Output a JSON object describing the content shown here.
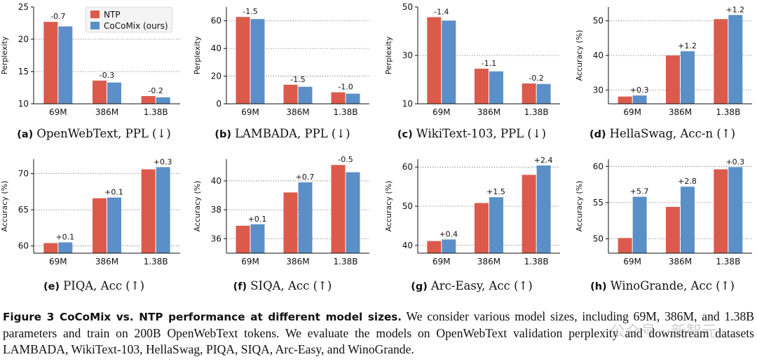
{
  "legend": {
    "ntp": "NTP",
    "cocomix": "CoCoMix (ours)"
  },
  "colors": {
    "ntp": "#dc5a4b",
    "cocomix": "#5b8fc7"
  },
  "caption": {
    "lead": "Figure 3  CoCoMix vs. NTP performance at different model sizes.",
    "body": " We consider various model sizes, including 69M, 386M, and 1.38B parameters and train on 200B OpenWebText tokens. We evaluate the models on OpenWebText validation perplexity and downstream datasets LAMBADA, WikiText-103, HellaSwag, PIQA, SIQA, Arc-Easy, and WinoGrande."
  },
  "watermark": "公众号 · 新智元",
  "chart_data": [
    {
      "type": "bar",
      "panel_letter": "(a)",
      "subtitle": "OpenWebText, PPL (↓)",
      "ylabel": "Perplexity",
      "categories": [
        "69M",
        "386M",
        "1.38B"
      ],
      "ylim": [
        10,
        25
      ],
      "yticks": [
        10,
        15,
        20,
        25
      ],
      "series": [
        {
          "name": "NTP",
          "values": [
            22.7,
            13.6,
            11.2
          ]
        },
        {
          "name": "CoCoMix (ours)",
          "values": [
            22.0,
            13.3,
            11.0
          ]
        }
      ],
      "annotations": [
        "-0.7",
        "-0.3",
        "-0.2"
      ],
      "grid": true,
      "legend": "top-right"
    },
    {
      "type": "bar",
      "panel_letter": "(b)",
      "subtitle": "LAMBADA, PPL (↓)",
      "ylabel": "Perplexity",
      "categories": [
        "69M",
        "386M",
        "1.38B"
      ],
      "ylim": [
        0,
        70
      ],
      "yticks": [
        0,
        20,
        40,
        60
      ],
      "series": [
        {
          "name": "NTP",
          "values": [
            62.8,
            13.8,
            8.3
          ]
        },
        {
          "name": "CoCoMix (ours)",
          "values": [
            61.3,
            12.3,
            7.3
          ]
        }
      ],
      "annotations": [
        "-1.5",
        "-1.5",
        "-1.0"
      ],
      "grid": true
    },
    {
      "type": "bar",
      "panel_letter": "(c)",
      "subtitle": "WikiText-103, PPL (↓)",
      "ylabel": "Perplexity",
      "categories": [
        "69M",
        "386M",
        "1.38B"
      ],
      "ylim": [
        10,
        50
      ],
      "yticks": [
        10,
        30,
        50
      ],
      "series": [
        {
          "name": "NTP",
          "values": [
            45.8,
            24.5,
            18.4
          ]
        },
        {
          "name": "CoCoMix (ours)",
          "values": [
            44.4,
            23.4,
            18.2
          ]
        }
      ],
      "annotations": [
        "-1.4",
        "-1.1",
        "-0.2"
      ],
      "grid": true
    },
    {
      "type": "bar",
      "panel_letter": "(d)",
      "subtitle": "HellaSwag, Acc-n (↑)",
      "ylabel": "Accuracy (%)",
      "categories": [
        "69M",
        "386M",
        "1.38B"
      ],
      "ylim": [
        26,
        54
      ],
      "yticks": [
        30,
        40,
        50
      ],
      "series": [
        {
          "name": "NTP",
          "values": [
            28.1,
            40.0,
            50.5
          ]
        },
        {
          "name": "CoCoMix (ours)",
          "values": [
            28.4,
            41.2,
            51.7
          ]
        }
      ],
      "annotations": [
        "+0.3",
        "+1.2",
        "+1.2"
      ],
      "grid": true
    },
    {
      "type": "bar",
      "panel_letter": "(e)",
      "subtitle": "PIQA, Acc (↑)",
      "ylabel": "Accuracy (%)",
      "categories": [
        "69M",
        "386M",
        "1.38B"
      ],
      "ylim": [
        59,
        72
      ],
      "yticks": [
        60,
        65,
        70
      ],
      "series": [
        {
          "name": "NTP",
          "values": [
            60.4,
            66.6,
            70.6
          ]
        },
        {
          "name": "CoCoMix (ours)",
          "values": [
            60.5,
            66.7,
            70.9
          ]
        }
      ],
      "annotations": [
        "+0.1",
        "+0.1",
        "+0.3"
      ],
      "grid": true
    },
    {
      "type": "bar",
      "panel_letter": "(f)",
      "subtitle": "SIQA, Acc (↑)",
      "ylabel": "Accuracy (%)",
      "categories": [
        "69M",
        "386M",
        "1.38B"
      ],
      "ylim": [
        35,
        41.5
      ],
      "yticks": [
        36,
        38,
        40
      ],
      "series": [
        {
          "name": "NTP",
          "values": [
            36.9,
            39.2,
            41.1
          ]
        },
        {
          "name": "CoCoMix (ours)",
          "values": [
            37.0,
            39.9,
            40.6
          ]
        }
      ],
      "annotations": [
        "+0.1",
        "+0.7",
        "-0.5"
      ],
      "grid": true
    },
    {
      "type": "bar",
      "panel_letter": "(g)",
      "subtitle": "Arc-Easy, Acc (↑)",
      "ylabel": "Accuracy (%)",
      "categories": [
        "69M",
        "386M",
        "1.38B"
      ],
      "ylim": [
        38,
        62
      ],
      "yticks": [
        40,
        50,
        60
      ],
      "series": [
        {
          "name": "NTP",
          "values": [
            41.1,
            50.8,
            58.0
          ]
        },
        {
          "name": "CoCoMix (ours)",
          "values": [
            41.5,
            52.3,
            60.4
          ]
        }
      ],
      "annotations": [
        "+0.4",
        "+1.5",
        "+2.4"
      ],
      "grid": true
    },
    {
      "type": "bar",
      "panel_letter": "(h)",
      "subtitle": "WinoGrande, Acc (↑)",
      "ylabel": "Accuracy (%)",
      "categories": [
        "69M",
        "386M",
        "1.38B"
      ],
      "ylim": [
        48,
        61
      ],
      "yticks": [
        50,
        55,
        60
      ],
      "series": [
        {
          "name": "NTP",
          "values": [
            50.1,
            54.4,
            59.6
          ]
        },
        {
          "name": "CoCoMix (ours)",
          "values": [
            55.8,
            57.2,
            59.9
          ]
        }
      ],
      "annotations": [
        "+5.7",
        "+2.8",
        "+0.3"
      ],
      "grid": true
    }
  ]
}
